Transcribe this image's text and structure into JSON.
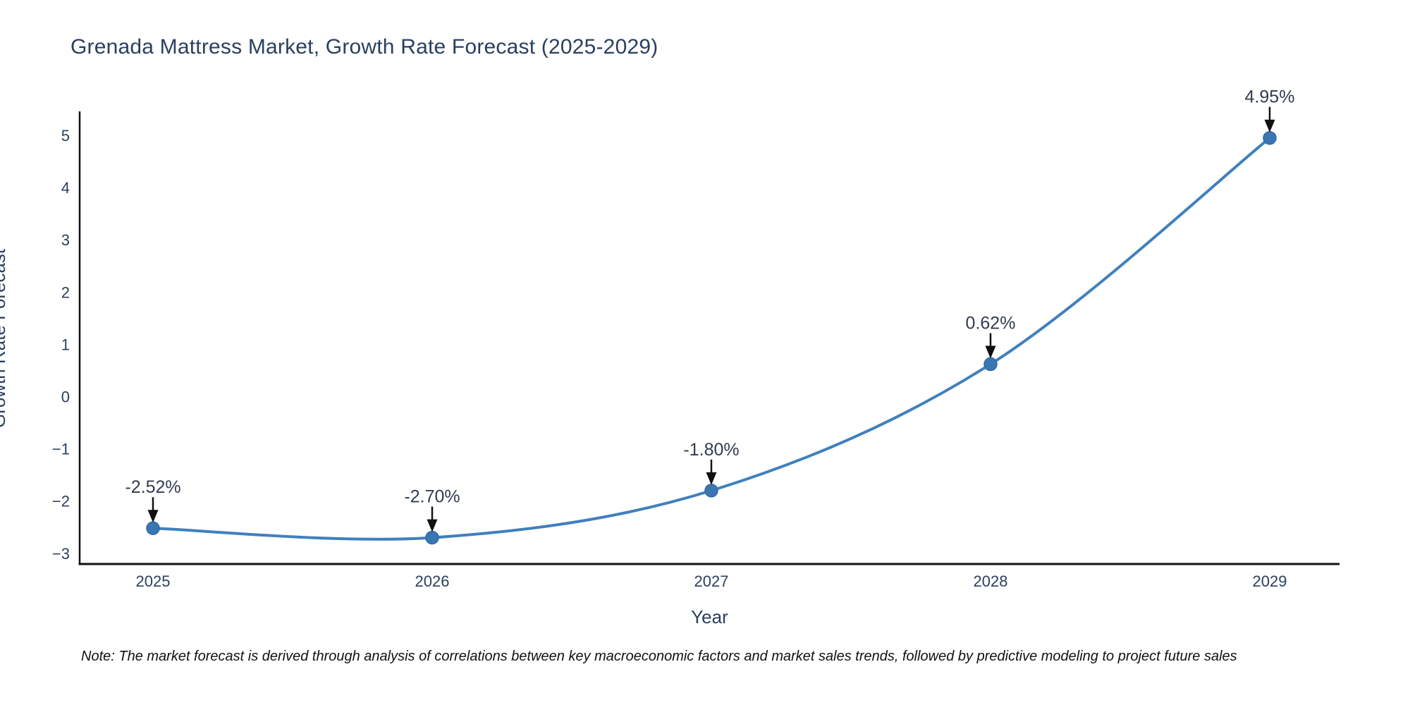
{
  "chart_data": {
    "type": "line",
    "title": "Grenada Mattress Market, Growth Rate Forecast (2025-2029)",
    "xlabel": "Year",
    "ylabel": "Growth Rate Forecast",
    "categories": [
      "2025",
      "2026",
      "2027",
      "2028",
      "2029"
    ],
    "values": [
      -2.52,
      -2.7,
      -1.8,
      0.62,
      4.95
    ],
    "point_labels": [
      "-2.52%",
      "-2.70%",
      "-1.80%",
      "0.62%",
      "4.95%"
    ],
    "yticks": [
      5,
      4,
      3,
      2,
      1,
      0,
      -1,
      -2,
      -3
    ],
    "ylim": [
      -3.45,
      5.65
    ],
    "grid": false,
    "legend": false,
    "line_shape": "spline",
    "note": "Note: The market forecast is derived through analysis of correlations between key macroeconomic factors and market sales trends, followed by predictive modeling to project future sales",
    "colors": {
      "line": "#4080bd",
      "marker": "#3a76b2",
      "marker_edge": "#2e6aa8",
      "axis": "#111111",
      "text": "#2a3f5f",
      "annotation_text": "#323c4e",
      "arrow": "#111111",
      "background": "#ffffff"
    }
  }
}
